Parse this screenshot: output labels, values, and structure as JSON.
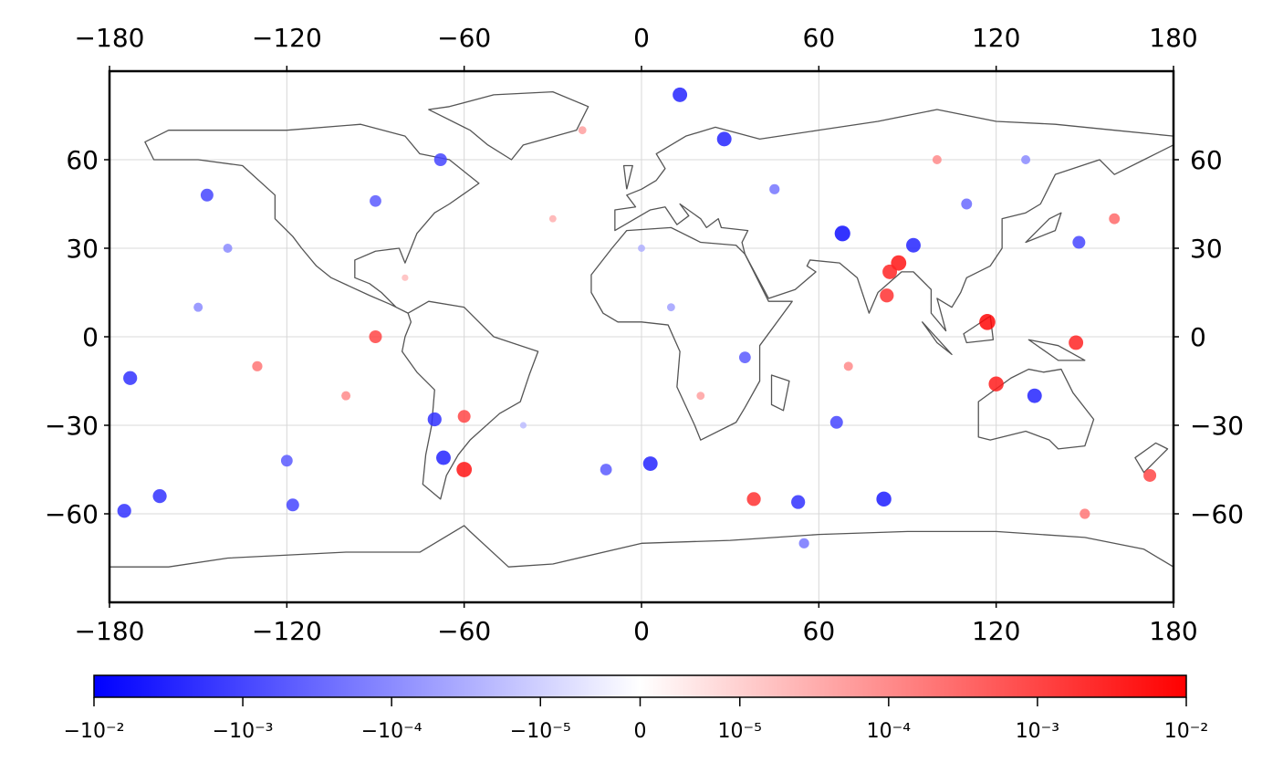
{
  "chart_data": {
    "type": "scatter",
    "xlim": [
      -180,
      180
    ],
    "ylim": [
      -90,
      90
    ],
    "xticks": [
      {
        "value": -180,
        "label": "−180"
      },
      {
        "value": -120,
        "label": "−120"
      },
      {
        "value": -60,
        "label": "−60"
      },
      0,
      60,
      120,
      180
    ],
    "yticks": [
      {
        "value": -60,
        "label": "−60"
      },
      {
        "value": -30,
        "label": "−30"
      },
      0,
      30,
      60
    ],
    "grid": true,
    "x": [
      117,
      87,
      120,
      -60,
      147,
      83,
      38,
      -90,
      -60,
      84,
      172,
      68,
      28,
      13,
      92,
      -67,
      133,
      82,
      -70,
      3,
      53,
      -175,
      -173,
      -163,
      -68,
      -118,
      66,
      148,
      -147,
      -120,
      -90,
      -12,
      35,
      100,
      -140,
      150,
      -30,
      10,
      -100,
      45,
      20,
      -150,
      160,
      -40,
      70,
      110,
      -80,
      130,
      -20,
      0,
      -130,
      55
    ],
    "y": [
      5,
      25,
      -16,
      -45,
      -2,
      14,
      -55,
      0,
      -27,
      22,
      -47,
      35,
      67,
      82,
      31,
      -41,
      -20,
      -55,
      -28,
      -43,
      -56,
      -59,
      -14,
      -54,
      60,
      -57,
      -29,
      32,
      48,
      -42,
      46,
      -45,
      -7,
      60,
      30,
      -60,
      40,
      10,
      -20,
      50,
      -20,
      10,
      40,
      -30,
      -10,
      45,
      20,
      60,
      70,
      30,
      -10,
      -70
    ],
    "values": [
      0.008,
      0.005,
      0.004,
      0.005,
      0.003,
      0.002,
      0.002,
      0.001,
      0.001,
      0.003,
      0.001,
      -0.006,
      -0.003,
      -0.003,
      -0.003,
      -0.003,
      -0.003,
      -0.004,
      -0.002,
      -0.003,
      -0.002,
      -0.002,
      -0.002,
      -0.002,
      -0.001,
      -0.001,
      -0.001,
      -0.001,
      -0.001,
      -0.0005,
      -0.0005,
      -0.0005,
      -0.0005,
      0.0001,
      -0.0001,
      0.0002,
      3e-05,
      -5e-05,
      0.0001,
      -0.0002,
      5e-05,
      -0.0001,
      0.0003,
      -2e-05,
      0.0001,
      -0.0003,
      2e-05,
      -0.0001,
      5e-05,
      -3e-05,
      0.0002,
      -0.0002
    ],
    "colorbar": {
      "scale": "symlog",
      "linthresh": 1e-05,
      "lim": [
        -0.01,
        0.01
      ],
      "cmap": [
        "#0000ff",
        "#ffffff",
        "#ff0000"
      ],
      "ticks": [
        {
          "value": -0.01,
          "label": "−10⁻²"
        },
        {
          "value": -0.001,
          "label": "−10⁻³"
        },
        {
          "value": -0.0001,
          "label": "−10⁻⁴"
        },
        {
          "value": -1e-05,
          "label": "−10⁻⁵"
        },
        0,
        {
          "value": 1e-05,
          "label": "10⁻⁵"
        },
        {
          "value": 0.0001,
          "label": "10⁻⁴"
        },
        {
          "value": 0.001,
          "label": "10⁻³"
        },
        {
          "value": 0.01,
          "label": "10⁻²"
        }
      ]
    }
  }
}
